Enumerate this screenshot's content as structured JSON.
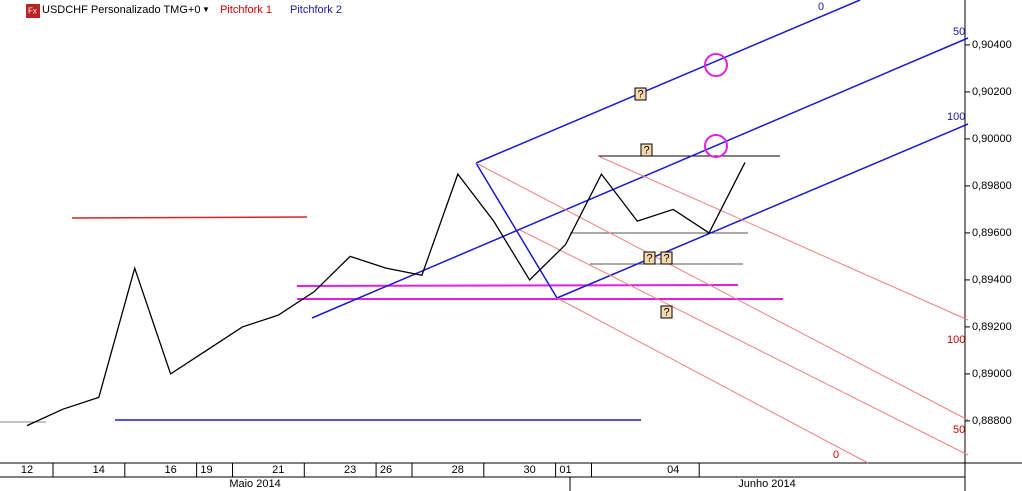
{
  "chart_data": {
    "type": "line",
    "title": "USDCHF Personalizado TMG+0",
    "toolbar_items": [
      "Pitchfork 1",
      "Pitchfork 2"
    ],
    "categories": [
      "12",
      null,
      "14",
      null,
      "16",
      "19",
      null,
      "21",
      null,
      "23",
      "26",
      null,
      "28",
      null,
      "30",
      "01",
      null,
      null,
      "04",
      null,
      null
    ],
    "month_labels": [
      "Maio 2014",
      "Junho 2014"
    ],
    "series": [
      {
        "name": "USDCHF",
        "color": "#000000",
        "values": [
          0.8878,
          0.8885,
          0.889,
          0.8945,
          0.89,
          0.891,
          0.892,
          0.8925,
          0.8935,
          0.895,
          0.8945,
          0.8942,
          0.8985,
          0.8965,
          0.894,
          0.8955,
          0.8985,
          0.8965,
          0.897,
          0.896,
          0.899
        ]
      }
    ],
    "ylim": [
      0.88621,
      0.90591
    ],
    "yticks": [
      {
        "value": 0.888,
        "label": "0,88800"
      },
      {
        "value": 0.89,
        "label": "0,89000"
      },
      {
        "value": 0.892,
        "label": "0,89200"
      },
      {
        "value": 0.894,
        "label": "0,89400"
      },
      {
        "value": 0.896,
        "label": "0,89600"
      },
      {
        "value": 0.898,
        "label": "0,89800"
      },
      {
        "value": 0.9,
        "label": "0,90000"
      },
      {
        "value": 0.902,
        "label": "0,90200"
      },
      {
        "value": 0.904,
        "label": "0,90400"
      }
    ],
    "pitchfork_levels": [
      "0",
      "50",
      "100"
    ],
    "marker_text": "?"
  }
}
